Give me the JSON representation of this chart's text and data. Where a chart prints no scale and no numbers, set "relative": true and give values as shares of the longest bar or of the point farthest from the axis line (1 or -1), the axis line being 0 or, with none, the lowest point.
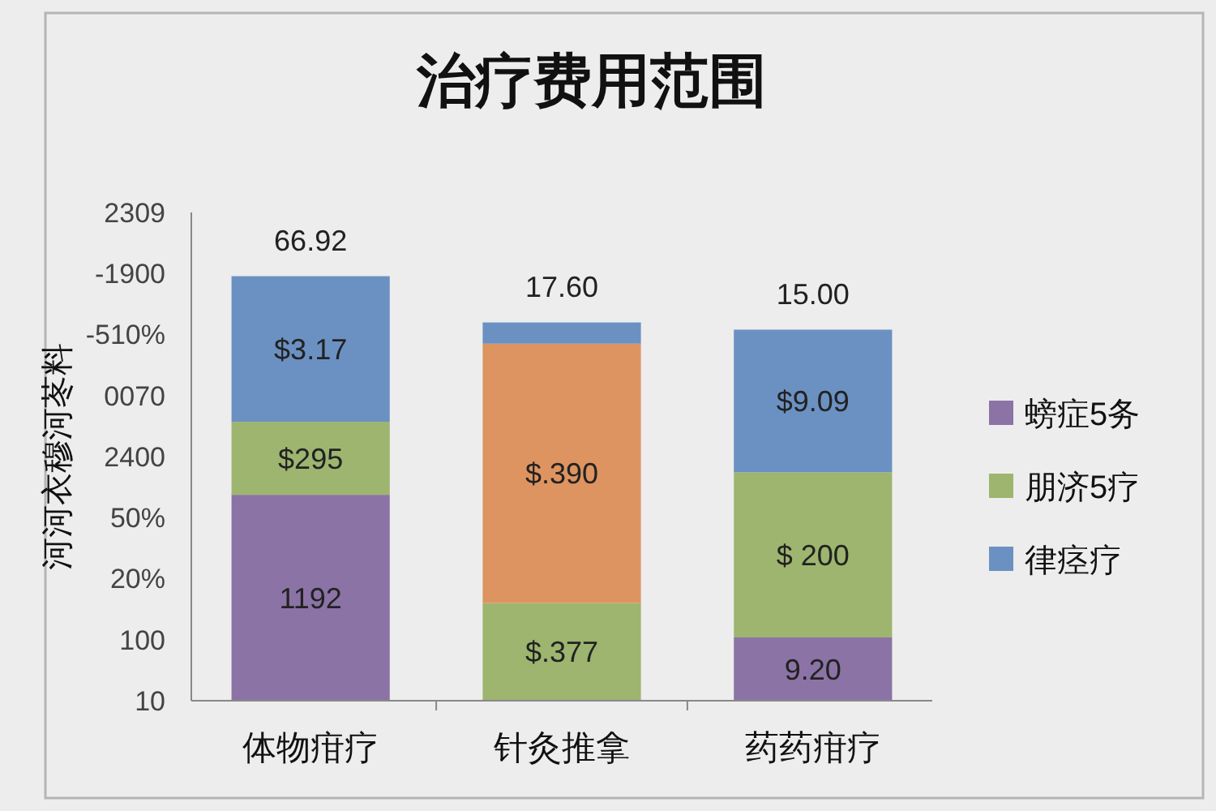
{
  "chart_data": {
    "type": "bar",
    "title": "治疗费用范围",
    "ylabel": "河河衣穆河苳料",
    "categories": [
      "体物疳疗",
      "针灸推拿",
      "药药疳疗"
    ],
    "stacked": true,
    "relative": true,
    "series": [
      {
        "name": "螃症5务",
        "color": "#8b73a6",
        "colors": [
          "#8b73a6",
          "#9db56f",
          "#8b73a6"
        ],
        "values": [
          0.485,
          0.23,
          0.149
        ]
      },
      {
        "name": "朋济5疗",
        "color": "#9db56f",
        "colors": [
          "#9db56f",
          "#de9460",
          "#9db56f"
        ],
        "values": [
          0.172,
          0.611,
          0.389
        ]
      },
      {
        "name": "律痉疗",
        "color": "#6b91c2",
        "colors": [
          "#6b91c2",
          "#6b91c2",
          "#6b91c2"
        ],
        "values": [
          0.343,
          0.05,
          0.336
        ]
      }
    ],
    "annotations": [
      "10",
      "100",
      "20%",
      "50%",
      "2400",
      "0070",
      "-510%",
      "-1900",
      "2309",
      "1192",
      "$295",
      "$3.17",
      "$.377",
      "$.390",
      "9.20",
      "$ 200",
      "$9.09",
      "66.92",
      "17.60",
      "15.00"
    ],
    "legend": "right"
  }
}
